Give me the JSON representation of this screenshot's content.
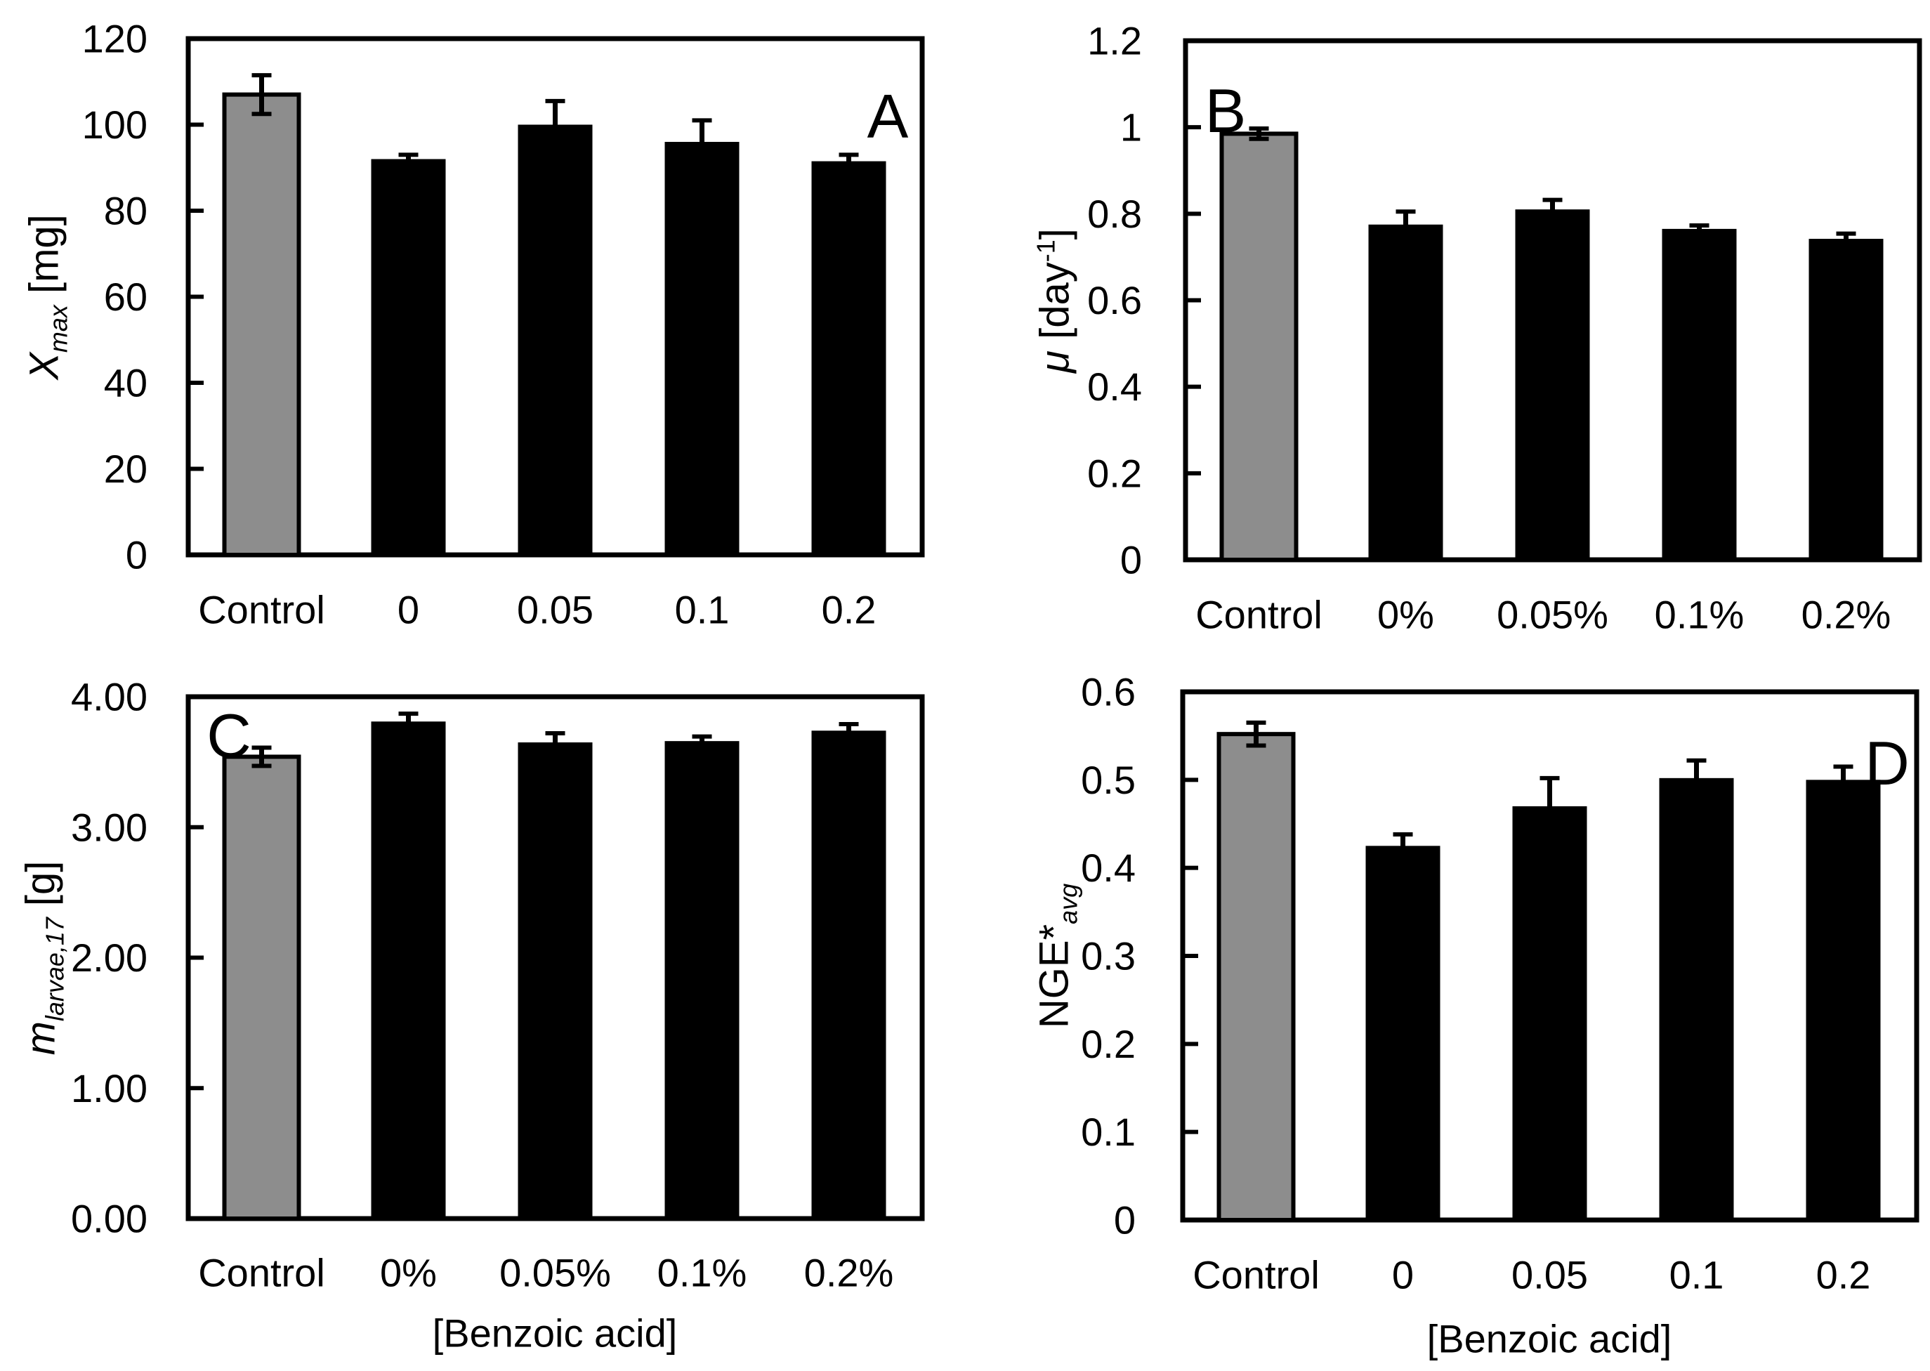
{
  "figure": {
    "background": "#ffffff",
    "bar_color": "#000000",
    "control_fill": "#8d8d8d",
    "axis_color": "#000000"
  },
  "chart_data": [
    {
      "id": "panel-a",
      "type": "bar",
      "letter": "A",
      "ylabel": "Xmax [mg]",
      "ylabel_parts": [
        {
          "t": "X",
          "s": "i"
        },
        {
          "t": "max",
          "s": "isub"
        },
        {
          "t": " [mg]",
          "s": "n"
        }
      ],
      "xlabel": "",
      "ylim": [
        0,
        120
      ],
      "yticks": [
        0,
        20,
        40,
        60,
        80,
        100,
        120
      ],
      "ytick_labels": [
        "0",
        "20",
        "40",
        "60",
        "80",
        "100",
        "120"
      ],
      "categories": [
        "Control",
        "0",
        "0.05",
        "0.1",
        "0.2"
      ],
      "values": [
        107,
        92,
        100,
        96,
        91.5
      ],
      "errors": [
        4.5,
        1,
        5.5,
        5,
        1.5
      ],
      "control_index": 0,
      "legend": "none",
      "grid": "off"
    },
    {
      "id": "panel-b",
      "type": "bar",
      "letter": "B",
      "ylabel": "μ [day-1]",
      "ylabel_parts": [
        {
          "t": "μ",
          "s": "i"
        },
        {
          "t": " [day",
          "s": "n"
        },
        {
          "t": "-1",
          "s": "sup"
        },
        {
          "t": "]",
          "s": "n"
        }
      ],
      "xlabel": "",
      "ylim": [
        0,
        1.2
      ],
      "yticks": [
        0,
        0.2,
        0.4,
        0.6,
        0.8,
        1,
        1.2
      ],
      "ytick_labels": [
        "0",
        "0.2",
        "0.4",
        "0.6",
        "0.8",
        "1",
        "1.2"
      ],
      "categories": [
        "Control",
        "0%",
        "0.05%",
        "0.1%",
        "0.2%"
      ],
      "values": [
        0.985,
        0.775,
        0.81,
        0.765,
        0.742
      ],
      "errors": [
        0.012,
        0.03,
        0.022,
        0.008,
        0.012
      ],
      "control_index": 0,
      "legend": "none",
      "grid": "off"
    },
    {
      "id": "panel-c",
      "type": "bar",
      "letter": "C",
      "ylabel": "mlarvae,17 [g]",
      "ylabel_parts": [
        {
          "t": "m",
          "s": "i"
        },
        {
          "t": "larvae,17",
          "s": "isub"
        },
        {
          "t": " [g]",
          "s": "n"
        }
      ],
      "xlabel": "[Benzoic acid]",
      "ylim": [
        0,
        4
      ],
      "yticks": [
        0,
        1,
        2,
        3,
        4
      ],
      "ytick_labels": [
        "0.00",
        "1.00",
        "2.00",
        "3.00",
        "4.00"
      ],
      "categories": [
        "Control",
        "0%",
        "0.05%",
        "0.1%",
        "0.2%"
      ],
      "values": [
        3.54,
        3.81,
        3.65,
        3.66,
        3.74
      ],
      "errors": [
        0.07,
        0.06,
        0.07,
        0.035,
        0.05
      ],
      "control_index": 0,
      "legend": "none",
      "grid": "off"
    },
    {
      "id": "panel-d",
      "type": "bar",
      "letter": "D",
      "ylabel": "NGE*avg",
      "ylabel_parts": [
        {
          "t": "NGE*",
          "s": "n"
        },
        {
          "t": "avg",
          "s": "isub"
        }
      ],
      "xlabel": "[Benzoic acid]",
      "ylim": [
        0,
        0.6
      ],
      "yticks": [
        0,
        0.1,
        0.2,
        0.3,
        0.4,
        0.5,
        0.6
      ],
      "ytick_labels": [
        "0",
        "0.1",
        "0.2",
        "0.3",
        "0.4",
        "0.5",
        "0.6"
      ],
      "categories": [
        "Control",
        "0",
        "0.05",
        "0.1",
        "0.2"
      ],
      "values": [
        0.552,
        0.425,
        0.47,
        0.502,
        0.5
      ],
      "errors": [
        0.013,
        0.013,
        0.032,
        0.02,
        0.015
      ],
      "control_index": 0,
      "legend": "none",
      "grid": "off"
    }
  ]
}
